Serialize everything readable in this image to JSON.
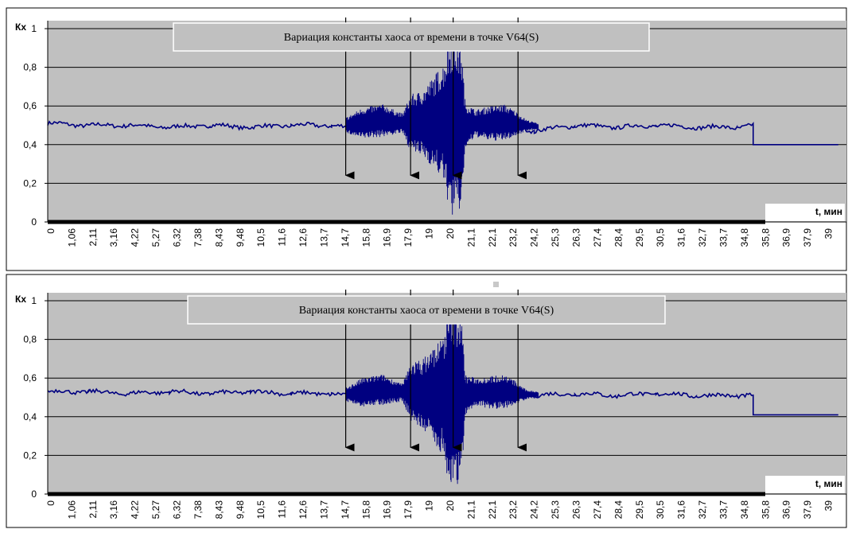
{
  "colors": {
    "plot_bg": "#c0c0c0",
    "series": "#000080",
    "grid": "#000000",
    "arrow": "#000000",
    "frame": "#000000"
  },
  "chart_data": [
    {
      "type": "line",
      "title": "Вариация константы хаоса от времени в точке V64(S)",
      "ylabel": "Кх",
      "xlabel": "t, мин",
      "ylim": [
        0,
        1
      ],
      "y_ticks": [
        "0",
        "0,2",
        "0,4",
        "0,6",
        "0,8",
        "1"
      ],
      "x_ticks": [
        "0",
        "1,06",
        "2,11",
        "3,16",
        "4,22",
        "5,27",
        "6,32",
        "7,38",
        "8,43",
        "9,48",
        "10,5",
        "11,6",
        "12,6",
        "13,7",
        "14,7",
        "15,8",
        "16,9",
        "17,9",
        "19",
        "20",
        "21,1",
        "22,1",
        "23,2",
        "24,2",
        "25,3",
        "26,3",
        "27,4",
        "28,4",
        "29,5",
        "30,5",
        "31,6",
        "32,7",
        "33,7",
        "34,8",
        "35,8",
        "36,9",
        "37,9",
        "39"
      ],
      "grid": true,
      "annotations": [
        {
          "kind": "arrow",
          "x": 14.7,
          "y_from": 1,
          "y_to": 0.2
        },
        {
          "kind": "arrow",
          "x": 17.9,
          "y_from": 1,
          "y_to": 0.2
        },
        {
          "kind": "arrow",
          "x": 20.0,
          "y_from": 1,
          "y_to": 0.2
        },
        {
          "kind": "arrow",
          "x": 23.2,
          "y_from": 1,
          "y_to": 0.2
        }
      ],
      "series": [
        {
          "points": [
            [
              0,
              0.51
            ],
            [
              2,
              0.5
            ],
            [
              4,
              0.5
            ],
            [
              6,
              0.49
            ],
            [
              8,
              0.5
            ],
            [
              10,
              0.49
            ],
            [
              12,
              0.5
            ],
            [
              14,
              0.5
            ],
            [
              14.8,
              0.49
            ],
            [
              15.5,
              0.52
            ],
            [
              16.5,
              0.53
            ],
            [
              17.5,
              0.5
            ],
            [
              18,
              0.55
            ],
            [
              19,
              0.55
            ],
            [
              19.8,
              0.6
            ],
            [
              20.5,
              0.5
            ],
            [
              21,
              0.48
            ],
            [
              22,
              0.52
            ],
            [
              23,
              0.5
            ],
            [
              24,
              0.47
            ],
            [
              26,
              0.5
            ],
            [
              28,
              0.49
            ],
            [
              30,
              0.5
            ],
            [
              32,
              0.49
            ],
            [
              34,
              0.49
            ],
            [
              34.8,
              0.5
            ],
            [
              34.8,
              0.4
            ],
            [
              39,
              0.4
            ]
          ],
          "envelope": [
            [
              14.7,
              0.46,
              0.54
            ],
            [
              15.5,
              0.43,
              0.59
            ],
            [
              16.5,
              0.44,
              0.61
            ],
            [
              17.5,
              0.46,
              0.56
            ],
            [
              17.9,
              0.36,
              0.66
            ],
            [
              18.5,
              0.34,
              0.68
            ],
            [
              19.5,
              0.22,
              0.82
            ],
            [
              19.9,
              0.02,
              0.99
            ],
            [
              20.4,
              0.06,
              0.93
            ],
            [
              20.6,
              0.38,
              0.62
            ],
            [
              21.1,
              0.44,
              0.58
            ],
            [
              21.8,
              0.42,
              0.6
            ],
            [
              22.5,
              0.42,
              0.61
            ],
            [
              23.0,
              0.44,
              0.58
            ],
            [
              23.6,
              0.47,
              0.53
            ],
            [
              24.2,
              0.48,
              0.51
            ]
          ]
        }
      ]
    },
    {
      "type": "line",
      "title": "Вариация константы хаоса от времени в точке V64(S)",
      "ylabel": "Кх",
      "xlabel": "t, мин",
      "ylim": [
        0,
        1
      ],
      "y_ticks": [
        "0",
        "0,2",
        "0,4",
        "0,6",
        "0,8",
        "1"
      ],
      "x_ticks": [
        "0",
        "1,06",
        "2,11",
        "3,16",
        "4,22",
        "5,27",
        "6,32",
        "7,38",
        "8,43",
        "9,48",
        "10,5",
        "11,6",
        "12,6",
        "13,7",
        "14,7",
        "15,8",
        "16,9",
        "17,9",
        "19",
        "20",
        "21,1",
        "22,1",
        "23,2",
        "24,2",
        "25,3",
        "26,3",
        "27,4",
        "28,4",
        "29,5",
        "30,5",
        "31,6",
        "32,7",
        "33,7",
        "34,8",
        "35,8",
        "36,9",
        "37,9",
        "39"
      ],
      "grid": true,
      "annotations": [
        {
          "kind": "arrow",
          "x": 14.7,
          "y_from": 1,
          "y_to": 0.2
        },
        {
          "kind": "arrow",
          "x": 17.9,
          "y_from": 1,
          "y_to": 0.2
        },
        {
          "kind": "arrow",
          "x": 20.0,
          "y_from": 1,
          "y_to": 0.2
        },
        {
          "kind": "arrow",
          "x": 23.2,
          "y_from": 1,
          "y_to": 0.2
        }
      ],
      "series": [
        {
          "points": [
            [
              0,
              0.53
            ],
            [
              2,
              0.53
            ],
            [
              4,
              0.52
            ],
            [
              6,
              0.53
            ],
            [
              8,
              0.52
            ],
            [
              10,
              0.53
            ],
            [
              12,
              0.52
            ],
            [
              14,
              0.52
            ],
            [
              14.8,
              0.51
            ],
            [
              15.5,
              0.53
            ],
            [
              16.5,
              0.55
            ],
            [
              17.5,
              0.52
            ],
            [
              18,
              0.57
            ],
            [
              19,
              0.56
            ],
            [
              19.8,
              0.6
            ],
            [
              20.5,
              0.52
            ],
            [
              21,
              0.5
            ],
            [
              22,
              0.53
            ],
            [
              23,
              0.52
            ],
            [
              24,
              0.51
            ],
            [
              26,
              0.52
            ],
            [
              28,
              0.51
            ],
            [
              30,
              0.52
            ],
            [
              32,
              0.51
            ],
            [
              34,
              0.51
            ],
            [
              34.8,
              0.51
            ],
            [
              34.8,
              0.41
            ],
            [
              39,
              0.41
            ]
          ],
          "envelope": [
            [
              14.7,
              0.48,
              0.55
            ],
            [
              15.5,
              0.45,
              0.6
            ],
            [
              16.5,
              0.46,
              0.62
            ],
            [
              17.5,
              0.48,
              0.57
            ],
            [
              17.9,
              0.38,
              0.68
            ],
            [
              18.5,
              0.33,
              0.7
            ],
            [
              19.5,
              0.2,
              0.82
            ],
            [
              19.9,
              0.0,
              1.0
            ],
            [
              20.4,
              0.06,
              0.94
            ],
            [
              20.6,
              0.4,
              0.62
            ],
            [
              21.1,
              0.46,
              0.6
            ],
            [
              21.8,
              0.44,
              0.61
            ],
            [
              22.5,
              0.44,
              0.62
            ],
            [
              23.0,
              0.46,
              0.59
            ],
            [
              23.6,
              0.49,
              0.54
            ],
            [
              24.2,
              0.5,
              0.53
            ]
          ]
        }
      ]
    }
  ]
}
